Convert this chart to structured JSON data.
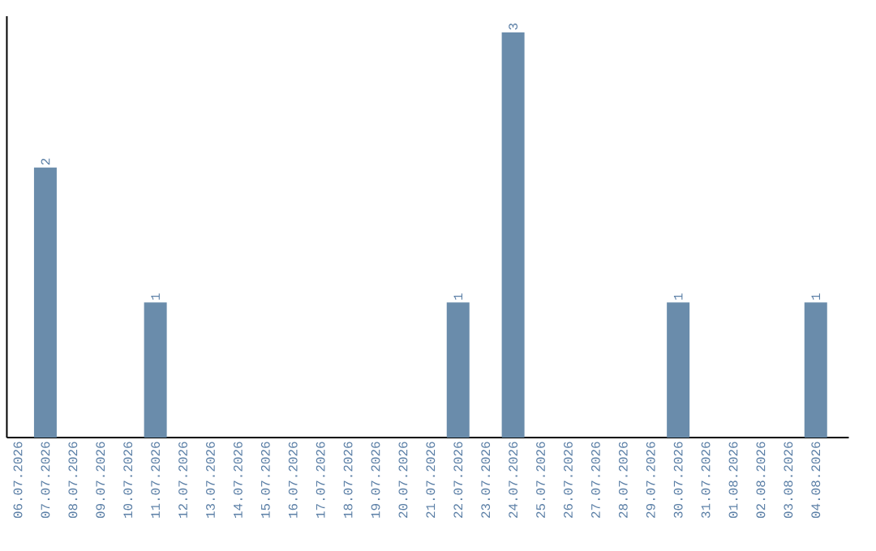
{
  "chart_data": {
    "type": "bar",
    "categories": [
      "06.07.2026",
      "07.07.2026",
      "08.07.2026",
      "09.07.2026",
      "10.07.2026",
      "11.07.2026",
      "12.07.2026",
      "13.07.2026",
      "14.07.2026",
      "15.07.2026",
      "16.07.2026",
      "17.07.2026",
      "18.07.2026",
      "19.07.2026",
      "20.07.2026",
      "21.07.2026",
      "22.07.2026",
      "23.07.2026",
      "24.07.2026",
      "25.07.2026",
      "26.07.2026",
      "27.07.2026",
      "28.07.2026",
      "29.07.2026",
      "30.07.2026",
      "31.07.2026",
      "01.08.2026",
      "02.08.2026",
      "03.08.2026",
      "04.08.2026"
    ],
    "values": [
      0,
      2,
      0,
      0,
      0,
      1,
      0,
      0,
      0,
      0,
      0,
      0,
      0,
      0,
      0,
      0,
      1,
      0,
      3,
      0,
      0,
      0,
      0,
      0,
      1,
      0,
      0,
      0,
      0,
      1
    ],
    "value_labels": [
      null,
      "2",
      null,
      null,
      null,
      "1",
      null,
      null,
      null,
      null,
      null,
      null,
      null,
      null,
      null,
      null,
      "1",
      null,
      "3",
      null,
      null,
      null,
      null,
      null,
      "1",
      null,
      null,
      null,
      null,
      "1"
    ],
    "color": "#6a8cab",
    "tick_labels": "x"
  }
}
